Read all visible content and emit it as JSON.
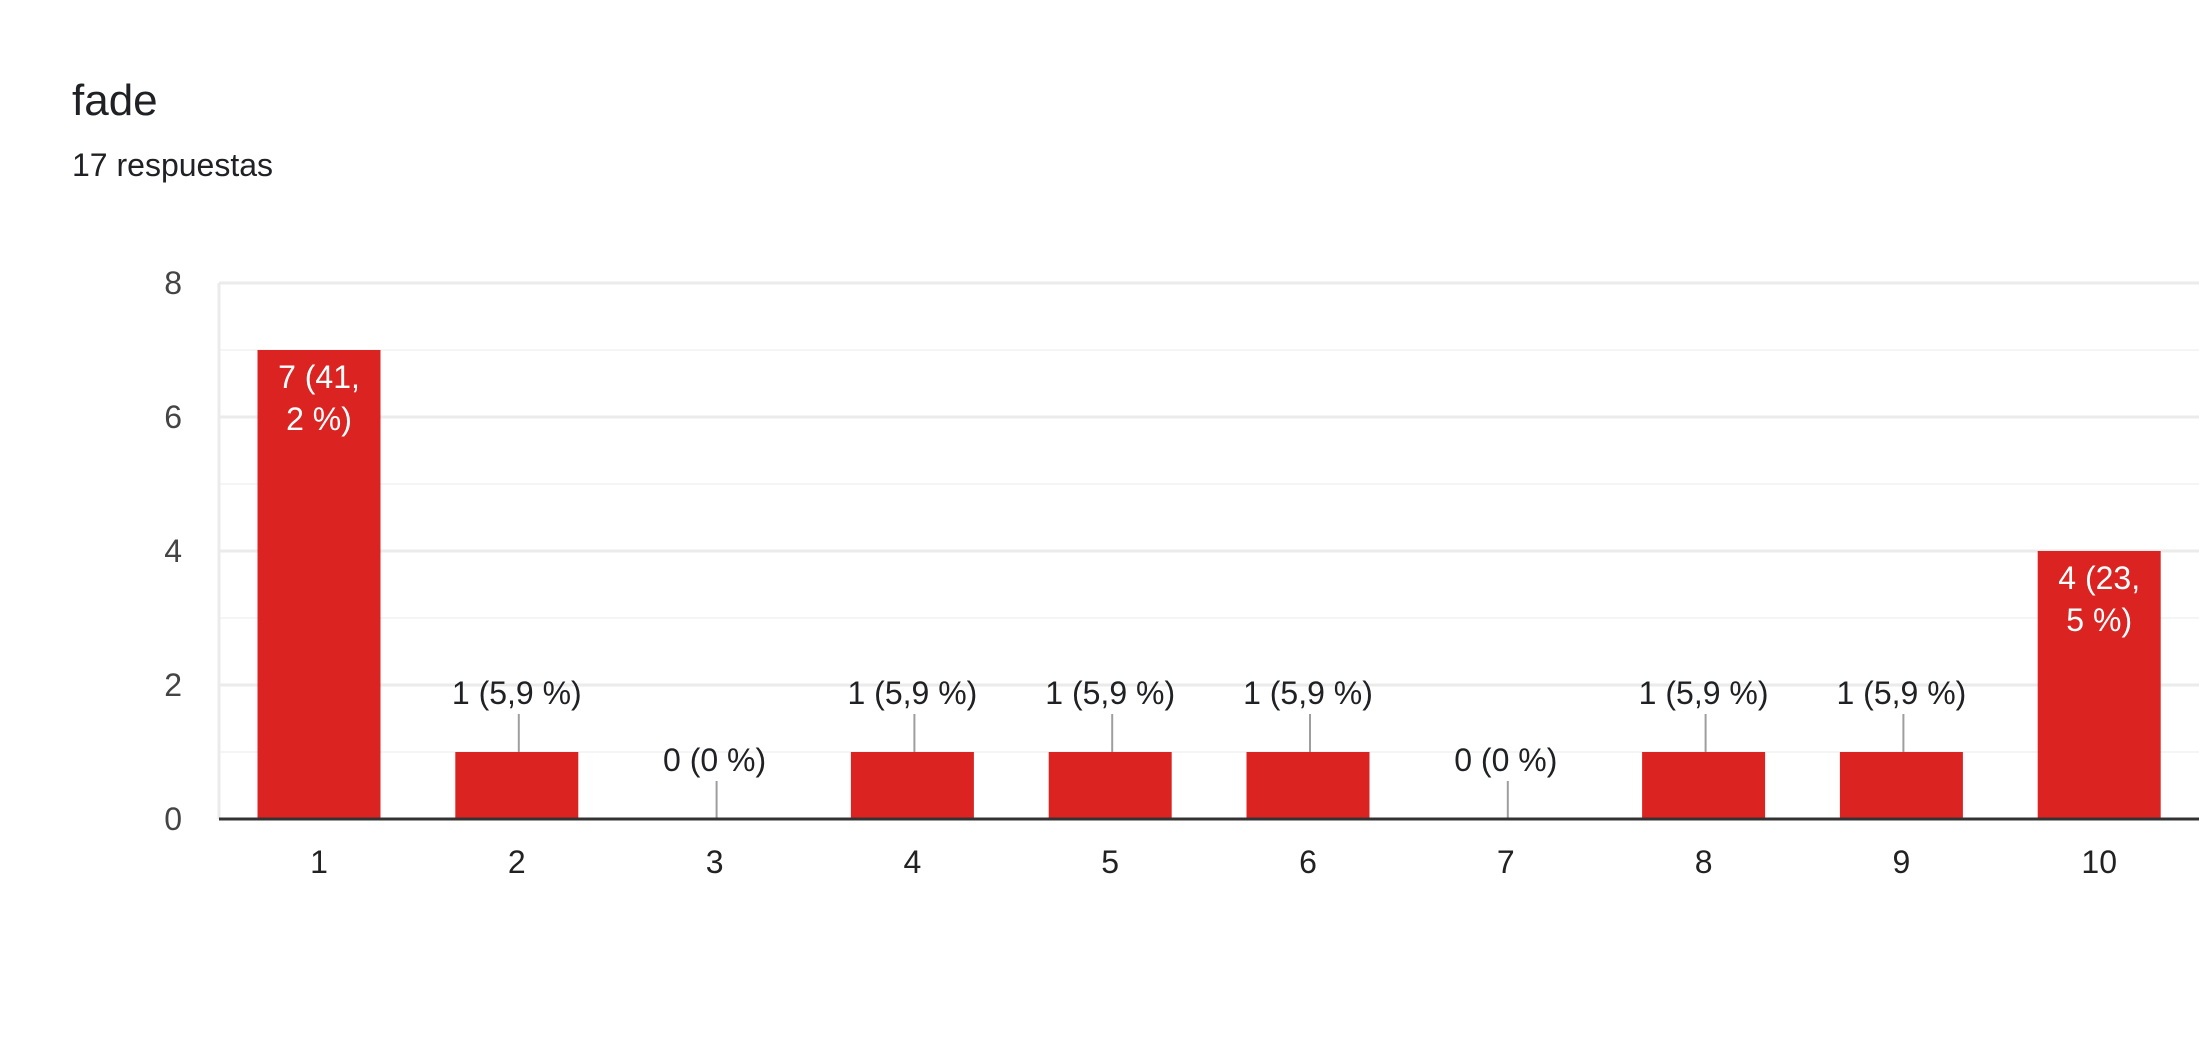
{
  "question": {
    "title": "fade",
    "responses_label": "17 respuestas"
  },
  "colors": {
    "bar": "#db2421",
    "gridline": "#ebebeb",
    "minor_gridline": "#f5f5f5",
    "axis": "#333333",
    "bar_label_inside": "#ffffff",
    "bar_label_outside": "#202124",
    "leader_line": "#9e9e9e"
  },
  "chart_data": {
    "type": "bar",
    "categories": [
      "1",
      "2",
      "3",
      "4",
      "5",
      "6",
      "7",
      "8",
      "9",
      "10"
    ],
    "values": [
      7,
      1,
      0,
      1,
      1,
      1,
      0,
      1,
      1,
      4
    ],
    "data_labels": [
      "7 (41,\n2 %)",
      "1 (5,9 %)",
      "0 (0 %)",
      "1 (5,9 %)",
      "1 (5,9 %)",
      "1 (5,9 %)",
      "0 (0 %)",
      "1 (5,9 %)",
      "1 (5,9 %)",
      "4 (23,\n5 %)"
    ],
    "y_ticks": [
      "0",
      "2",
      "4",
      "6",
      "8"
    ],
    "ylim": [
      0,
      8
    ],
    "grid": true,
    "title": "",
    "xlabel": "",
    "ylabel": ""
  }
}
